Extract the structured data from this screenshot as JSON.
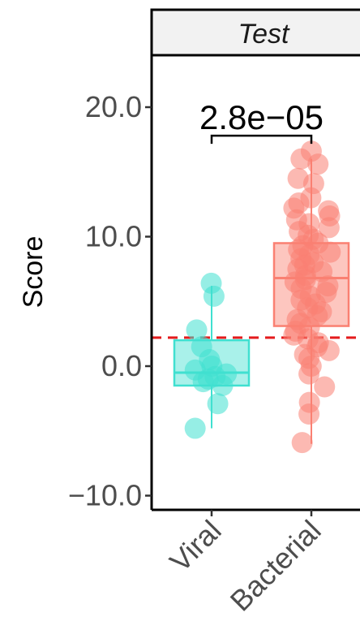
{
  "chart_data": {
    "type": "box",
    "facet": "Test",
    "ylabel": "Score",
    "xlabel": "",
    "ylim": [
      -11.5,
      25.5
    ],
    "yticks": [
      -10.0,
      0.0,
      10.0,
      20.0
    ],
    "ytick_labels": [
      "−10.0",
      "0.0",
      "10.0",
      "20.0"
    ],
    "categories": [
      "Viral",
      "Bacterial"
    ],
    "colors": {
      "Viral": "#40e0d0",
      "Bacterial": "#fa8072",
      "threshold": "#e41a1c"
    },
    "threshold": 2.2,
    "significance": {
      "label": "2.8e−05",
      "pair": [
        "Viral",
        "Bacterial"
      ],
      "y": 17.8
    },
    "boxes": [
      {
        "group": "Viral",
        "q1": -1.5,
        "median": -0.5,
        "q3": 2.0,
        "whisker_low": -4.8,
        "whisker_high": 6.2
      },
      {
        "group": "Bacterial",
        "q1": 3.1,
        "median": 6.8,
        "q3": 9.5,
        "whisker_low": -6.0,
        "whisker_high": 16.0
      }
    ],
    "points": {
      "Viral": [
        6.4,
        5.4,
        2.8,
        1.5,
        0.5,
        0.0,
        -0.3,
        -0.6,
        -0.8,
        -1.0,
        -1.2,
        -1.5,
        -2.9,
        -4.8
      ],
      "Bacterial": [
        16.6,
        16.0,
        15.6,
        14.5,
        14.1,
        13.0,
        12.6,
        12.2,
        12.0,
        11.6,
        11.3,
        11.0,
        10.7,
        10.4,
        10.1,
        9.8,
        9.5,
        9.3,
        9.0,
        8.8,
        8.6,
        8.3,
        8.0,
        7.8,
        7.5,
        7.3,
        7.0,
        6.7,
        6.5,
        6.2,
        6.0,
        5.7,
        5.4,
        5.1,
        4.8,
        4.5,
        4.2,
        3.9,
        3.6,
        3.3,
        3.0,
        2.7,
        2.4,
        2.1,
        1.8,
        1.5,
        1.2,
        0.9,
        0.6,
        0.0,
        -0.6,
        -1.6,
        -2.8,
        -3.7,
        -5.9
      ]
    }
  }
}
